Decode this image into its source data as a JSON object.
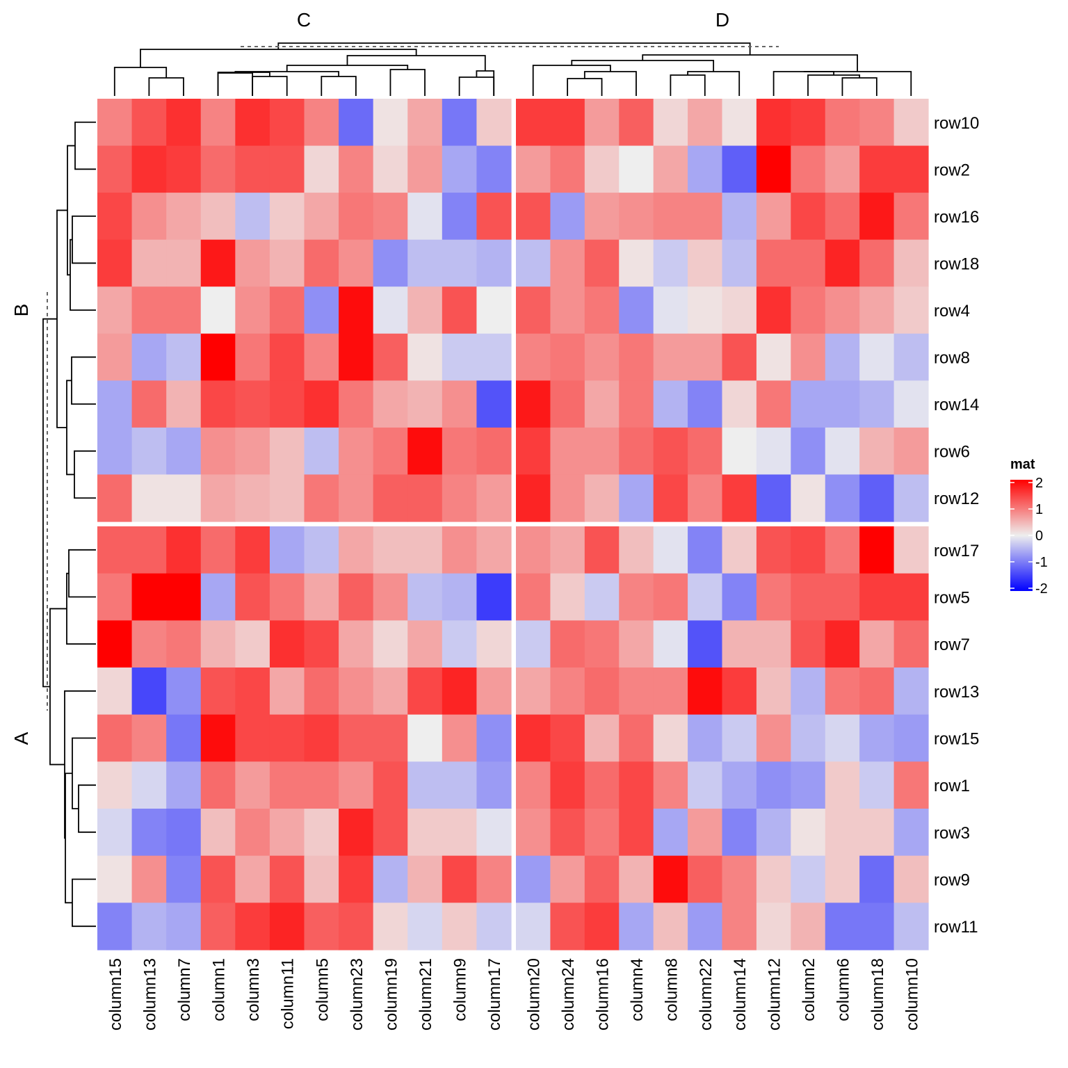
{
  "chart_data": {
    "type": "heatmap",
    "title": "",
    "legend": {
      "title": "mat",
      "position": "right",
      "ticks": [
        "2",
        "1",
        "0",
        "-1",
        "-2"
      ],
      "tick_values": [
        2,
        1,
        0,
        -1,
        -2
      ],
      "range": [
        -2,
        2
      ],
      "colors": {
        "low": "#0000ff",
        "mid": "#eeeeee",
        "high": "#ff0000"
      }
    },
    "column_groups": [
      {
        "label": "C",
        "columns": [
          "column15",
          "column13",
          "column7",
          "column1",
          "column3",
          "column11",
          "column5",
          "column23",
          "column19",
          "column21",
          "column9",
          "column17"
        ]
      },
      {
        "label": "D",
        "columns": [
          "column20",
          "column24",
          "column16",
          "column4",
          "column8",
          "column22",
          "column14",
          "column12",
          "column2",
          "column6",
          "column18",
          "column10"
        ]
      }
    ],
    "row_groups": [
      {
        "label": "B",
        "rows": [
          "row10",
          "row2",
          "row16",
          "row18",
          "row4",
          "row8",
          "row14",
          "row6",
          "row12"
        ]
      },
      {
        "label": "A",
        "rows": [
          "row17",
          "row5",
          "row7",
          "row13",
          "row15",
          "row1",
          "row3",
          "row9",
          "row11"
        ]
      }
    ],
    "values": [
      [
        0.9,
        1.3,
        1.6,
        0.9,
        1.6,
        1.4,
        0.9,
        -1.1,
        0.1,
        0.6,
        -1.0,
        0.3,
        1.5,
        1.5,
        0.7,
        1.2,
        0.2,
        0.6,
        0.1,
        1.6,
        1.5,
        1.0,
        0.9,
        0.3
      ],
      [
        1.2,
        1.6,
        1.5,
        1.1,
        1.3,
        1.3,
        0.2,
        0.9,
        0.2,
        0.7,
        -0.6,
        -0.9,
        0.7,
        1.0,
        0.3,
        0.0,
        0.6,
        -0.6,
        -1.2,
        2.0,
        1.0,
        0.7,
        1.5,
        1.5
      ],
      [
        1.4,
        0.8,
        0.6,
        0.4,
        -0.4,
        0.3,
        0.6,
        1.0,
        0.9,
        -0.1,
        -0.9,
        1.3,
        1.3,
        -0.7,
        0.7,
        0.8,
        0.9,
        0.9,
        -0.5,
        0.7,
        1.4,
        1.1,
        1.8,
        1.0
      ],
      [
        1.5,
        0.5,
        0.5,
        1.8,
        0.7,
        0.5,
        1.1,
        0.8,
        -0.8,
        -0.4,
        -0.4,
        -0.5,
        -0.4,
        0.8,
        1.2,
        0.1,
        -0.3,
        0.3,
        -0.4,
        1.1,
        1.1,
        1.7,
        1.1,
        0.4
      ],
      [
        0.6,
        1.0,
        1.0,
        0.0,
        0.8,
        1.1,
        -0.8,
        1.9,
        -0.1,
        0.5,
        1.3,
        0.0,
        1.2,
        0.8,
        1.0,
        -0.8,
        -0.1,
        0.1,
        0.2,
        1.6,
        1.0,
        0.8,
        0.6,
        0.3
      ],
      [
        0.7,
        -0.6,
        -0.4,
        2.0,
        1.0,
        1.4,
        0.9,
        1.9,
        1.2,
        0.1,
        -0.3,
        -0.3,
        0.9,
        1.0,
        0.8,
        1.0,
        0.7,
        0.7,
        1.3,
        0.1,
        0.8,
        -0.5,
        -0.1,
        -0.4
      ],
      [
        -0.6,
        1.1,
        0.5,
        1.4,
        1.3,
        1.4,
        1.6,
        1.0,
        0.6,
        0.5,
        0.8,
        -1.3,
        1.8,
        1.1,
        0.6,
        1.0,
        -0.5,
        -0.9,
        0.2,
        1.0,
        -0.6,
        -0.6,
        -0.5,
        -0.1
      ],
      [
        -0.6,
        -0.4,
        -0.6,
        0.8,
        0.7,
        0.4,
        -0.4,
        0.8,
        1.0,
        1.9,
        1.0,
        1.1,
        1.5,
        0.8,
        0.8,
        1.1,
        1.3,
        1.1,
        0.0,
        -0.1,
        -0.8,
        -0.1,
        0.5,
        0.7
      ],
      [
        1.1,
        0.1,
        0.1,
        0.6,
        0.5,
        0.4,
        1.0,
        0.8,
        1.2,
        1.2,
        0.9,
        0.7,
        1.7,
        0.8,
        0.5,
        -0.6,
        1.4,
        0.9,
        1.5,
        -1.2,
        0.1,
        -0.8,
        -1.2,
        -0.4
      ],
      [
        1.2,
        1.2,
        1.6,
        1.1,
        1.5,
        -0.6,
        -0.4,
        0.6,
        0.4,
        0.4,
        0.8,
        0.6,
        0.8,
        0.6,
        1.3,
        0.4,
        -0.1,
        -0.9,
        0.3,
        1.3,
        1.4,
        1.0,
        2.0,
        0.3
      ],
      [
        1.0,
        2.0,
        2.0,
        -0.6,
        1.3,
        1.0,
        0.6,
        1.2,
        0.8,
        -0.4,
        -0.5,
        -1.5,
        1.0,
        0.3,
        -0.3,
        0.9,
        1.0,
        -0.3,
        -0.9,
        1.0,
        1.2,
        1.2,
        1.5,
        1.5
      ],
      [
        2.0,
        0.9,
        1.0,
        0.5,
        0.3,
        1.6,
        1.4,
        0.6,
        0.2,
        0.6,
        -0.3,
        0.2,
        -0.3,
        1.1,
        1.0,
        0.6,
        -0.1,
        -1.3,
        0.5,
        0.5,
        1.3,
        1.7,
        0.6,
        1.1
      ],
      [
        0.2,
        -1.4,
        -0.8,
        1.3,
        1.4,
        0.6,
        1.1,
        0.8,
        0.6,
        1.4,
        1.7,
        0.7,
        0.6,
        0.9,
        1.1,
        0.9,
        0.9,
        1.9,
        1.5,
        0.4,
        -0.5,
        1.0,
        1.1,
        -0.5
      ],
      [
        1.1,
        0.9,
        -1.0,
        1.9,
        1.4,
        1.4,
        1.5,
        1.2,
        1.2,
        0.0,
        0.8,
        -0.8,
        1.6,
        1.4,
        0.5,
        1.1,
        0.2,
        -0.6,
        -0.3,
        0.8,
        -0.4,
        -0.2,
        -0.6,
        -0.7
      ],
      [
        0.2,
        -0.2,
        -0.6,
        1.1,
        0.7,
        1.0,
        1.0,
        0.8,
        1.3,
        -0.4,
        -0.4,
        -0.7,
        0.9,
        1.5,
        1.1,
        1.4,
        0.9,
        -0.3,
        -0.6,
        -0.8,
        -0.7,
        0.3,
        -0.3,
        1.0
      ],
      [
        -0.2,
        -0.9,
        -1.0,
        0.4,
        0.9,
        0.6,
        0.3,
        1.7,
        1.3,
        0.3,
        0.3,
        -0.1,
        0.8,
        1.3,
        1.0,
        1.4,
        -0.6,
        0.7,
        -0.9,
        -0.5,
        0.1,
        0.3,
        0.3,
        -0.6
      ],
      [
        0.1,
        0.8,
        -0.9,
        1.3,
        0.6,
        1.3,
        0.4,
        1.5,
        -0.5,
        0.5,
        1.4,
        0.9,
        -0.7,
        0.7,
        1.2,
        0.5,
        1.9,
        1.2,
        0.9,
        0.3,
        -0.3,
        0.3,
        -1.1,
        0.4
      ],
      [
        -0.9,
        -0.5,
        -0.6,
        1.2,
        1.5,
        1.7,
        1.2,
        1.3,
        0.2,
        -0.2,
        0.3,
        -0.3,
        -0.2,
        1.3,
        1.5,
        -0.6,
        0.4,
        -0.7,
        0.9,
        0.2,
        0.5,
        -1.0,
        -1.0,
        -0.4
      ]
    ]
  }
}
